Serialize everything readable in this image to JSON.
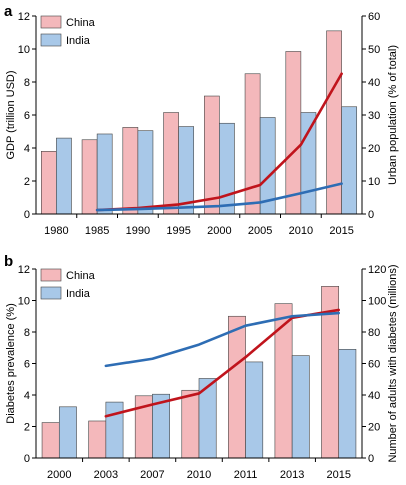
{
  "chart_data": [
    {
      "panel": "a",
      "type": "bar",
      "categories": [
        "1980",
        "1985",
        "1990",
        "1995",
        "2000",
        "2005",
        "2010",
        "2015"
      ],
      "ylabel": "GDP (trillion USD)",
      "ylim": [
        0,
        12
      ],
      "yticks": [
        "0",
        "2",
        "4",
        "6",
        "8",
        "10",
        "12"
      ],
      "y2label": "Urban population (% of total)",
      "y2lim": [
        0,
        60
      ],
      "y2ticks": [
        "0",
        "10",
        "20",
        "30",
        "40",
        "50",
        "60"
      ],
      "legend_position": "top-left",
      "grid": false,
      "series": [
        {
          "name": "China",
          "kind": "bar",
          "axis": "left",
          "color": "#f4b8bb",
          "values": [
            3.8,
            4.5,
            5.25,
            6.15,
            7.15,
            8.5,
            9.85,
            11.1
          ]
        },
        {
          "name": "India",
          "kind": "bar",
          "axis": "left",
          "color": "#a8c8e8",
          "values": [
            4.6,
            4.85,
            5.05,
            5.3,
            5.5,
            5.85,
            6.15,
            6.5
          ]
        },
        {
          "kind": "line",
          "axis": "right",
          "color": "#c0141c",
          "values": [
            null,
            1.2,
            1.8,
            2.9,
            5.0,
            8.8,
            21.0,
            42.5
          ]
        },
        {
          "kind": "line",
          "axis": "right",
          "color": "#2e6db4",
          "values": [
            null,
            1.2,
            1.5,
            1.9,
            2.4,
            3.5,
            6.3,
            9.2
          ]
        }
      ]
    },
    {
      "panel": "b",
      "type": "bar",
      "categories": [
        "2000",
        "2003",
        "2007",
        "2010",
        "2011",
        "2013",
        "2015"
      ],
      "ylabel": "Diabetes prevalence (%)",
      "ylim": [
        0,
        12
      ],
      "yticks": [
        "0",
        "2",
        "4",
        "6",
        "8",
        "10",
        "12"
      ],
      "y2label": "Number of adults with diabetes (millions)",
      "y2lim": [
        0,
        120
      ],
      "y2ticks": [
        "0",
        "20",
        "40",
        "60",
        "80",
        "100",
        "120"
      ],
      "legend_position": "top-left",
      "grid": false,
      "series": [
        {
          "name": "China",
          "kind": "bar",
          "axis": "left",
          "color": "#f4b8bb",
          "values": [
            2.25,
            2.35,
            3.95,
            4.3,
            9.0,
            9.8,
            10.9
          ]
        },
        {
          "name": "India",
          "kind": "bar",
          "axis": "left",
          "color": "#a8c8e8",
          "values": [
            3.25,
            3.55,
            4.05,
            5.05,
            6.1,
            6.5,
            6.9
          ]
        },
        {
          "kind": "line",
          "axis": "right",
          "color": "#c0141c",
          "values": [
            null,
            26.5,
            34.0,
            41.0,
            64.0,
            89.0,
            94.0
          ]
        },
        {
          "kind": "line",
          "axis": "right",
          "color": "#2e6db4",
          "values": [
            null,
            58.5,
            63.0,
            72.0,
            84.0,
            90.0,
            92.0
          ]
        }
      ]
    }
  ]
}
